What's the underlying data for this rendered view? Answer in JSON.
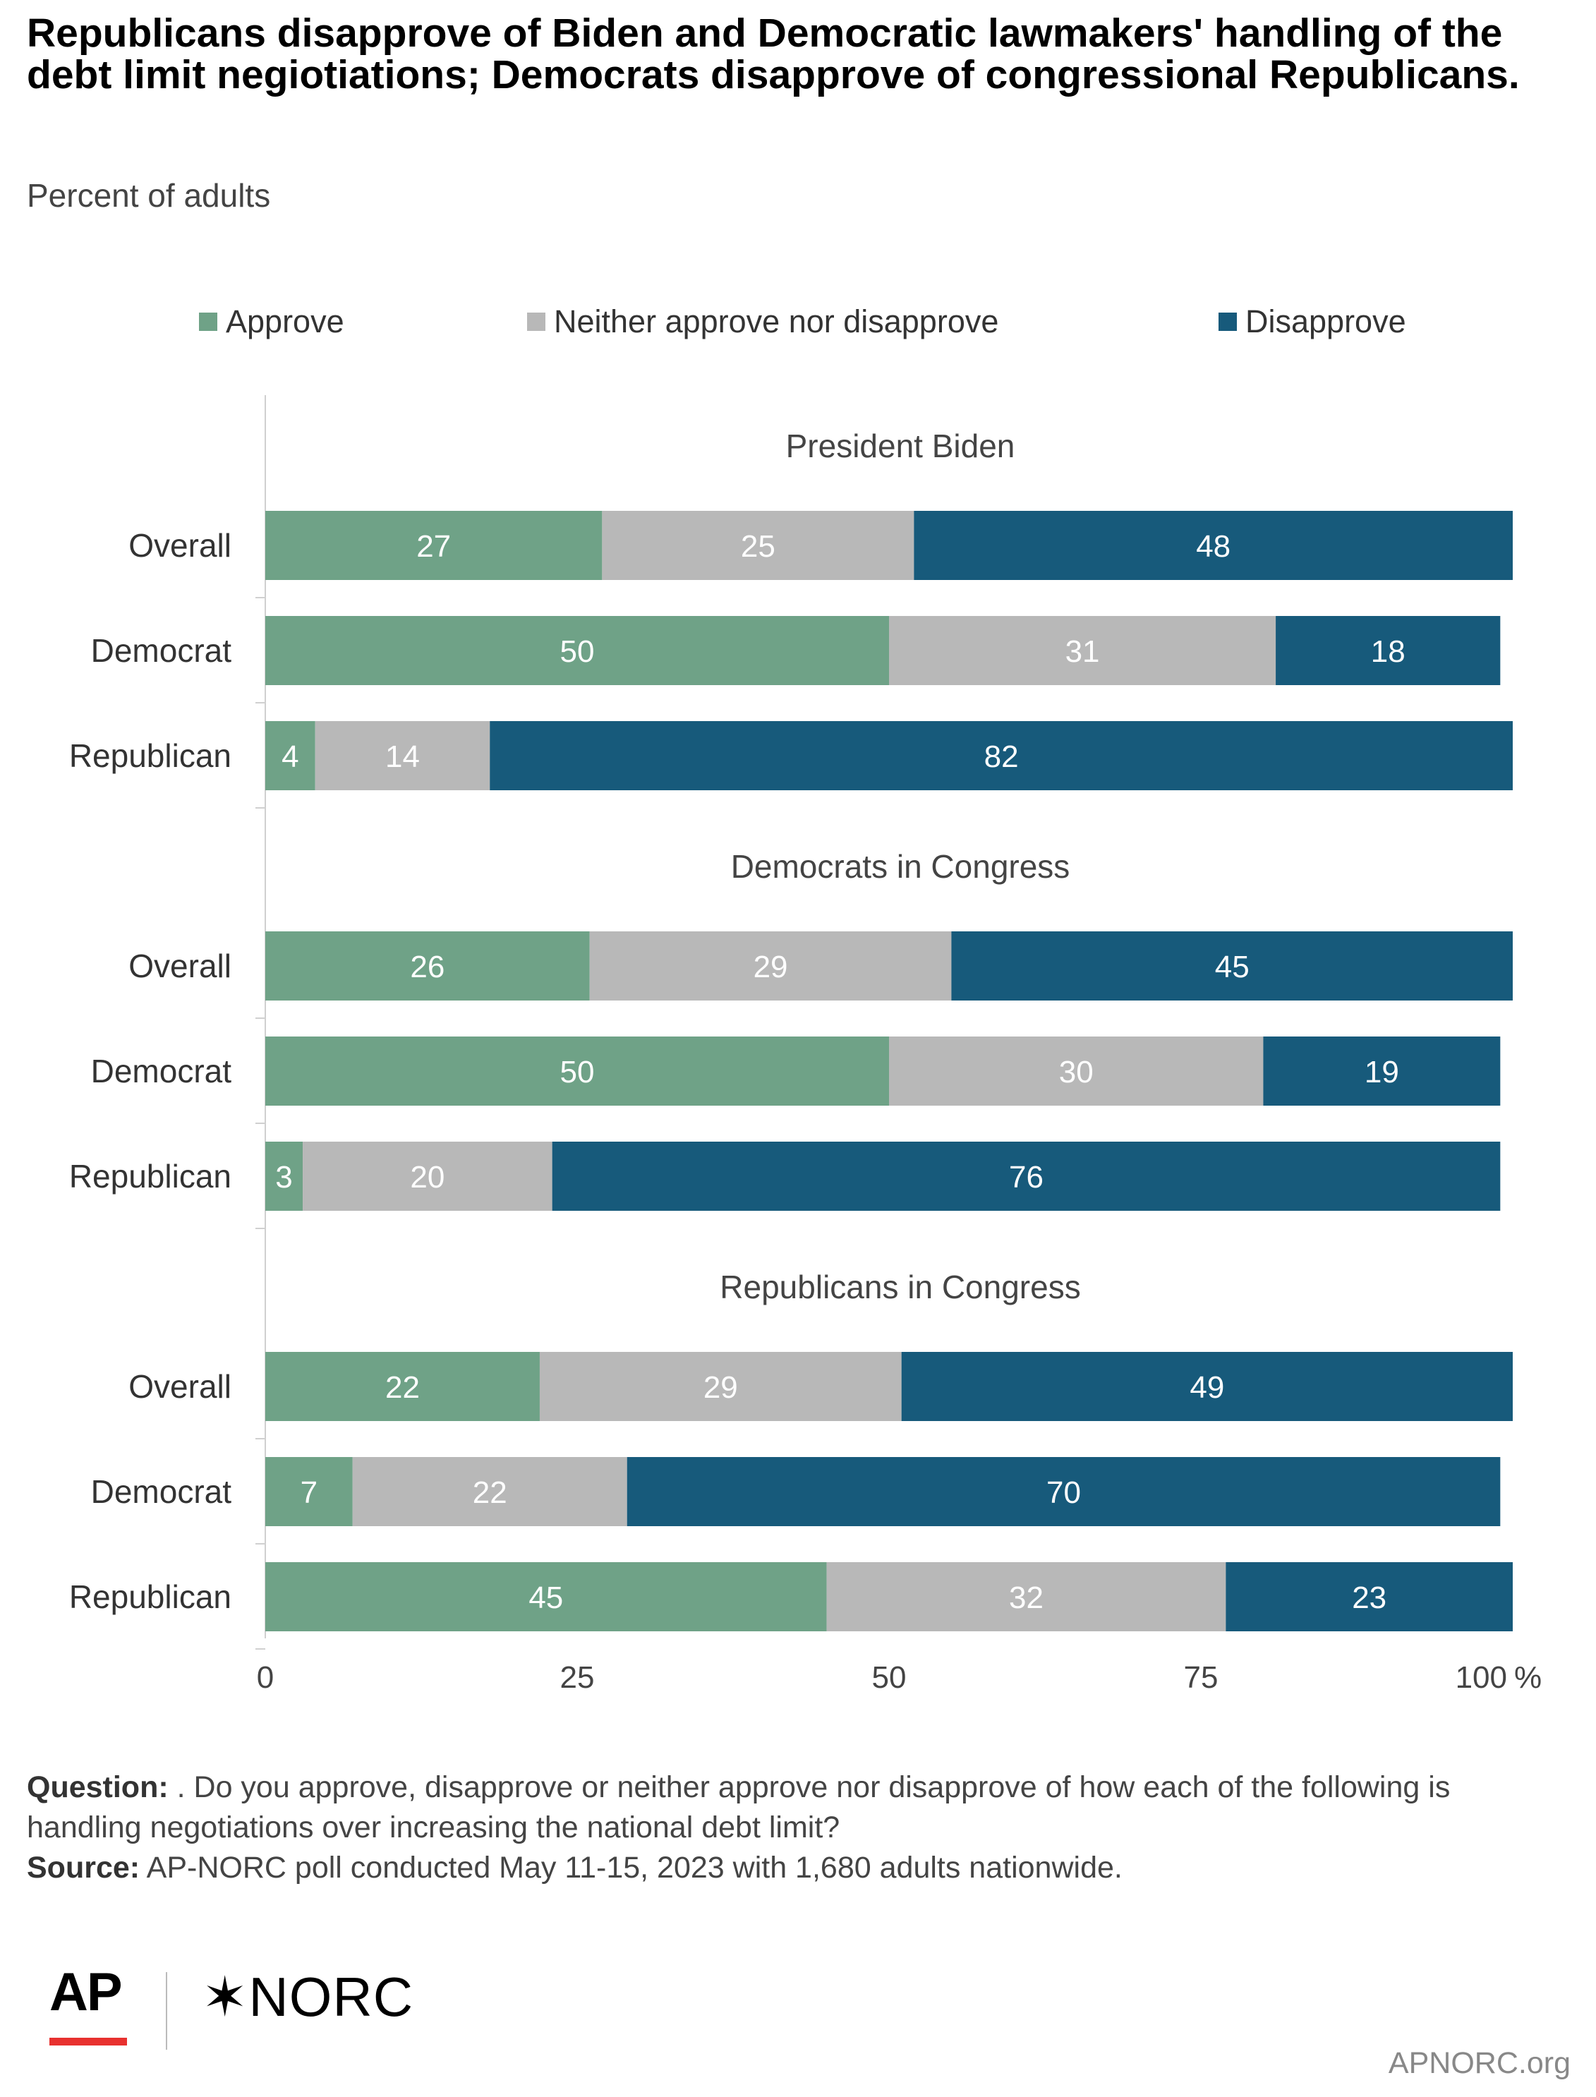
{
  "title": "Republicans disapprove of Biden and Democratic lawmakers' handling of the debt limit negiotiations; Democrats disapprove of congressional Republicans.",
  "subtitle": "Percent of adults",
  "legend": [
    {
      "label": "Approve",
      "color": "#6fa287"
    },
    {
      "label": "Neither approve nor disapprove",
      "color": "#b8b8b8"
    },
    {
      "label": "Disapprove",
      "color": "#175a7b"
    }
  ],
  "chart_data": {
    "type": "bar",
    "orientation": "horizontal",
    "stacked": true,
    "xlim": [
      0,
      100
    ],
    "x_ticks": [
      "0",
      "25",
      "50",
      "75",
      "100"
    ],
    "x_unit": "%",
    "series_names": [
      "Approve",
      "Neither approve nor disapprove",
      "Disapprove"
    ],
    "series_colors": [
      "#6fa287",
      "#b8b8b8",
      "#175a7b"
    ],
    "groups": [
      {
        "title": "President Biden",
        "rows": [
          {
            "label": "Overall",
            "values": [
              27,
              25,
              48
            ]
          },
          {
            "label": "Democrat",
            "values": [
              50,
              31,
              18
            ]
          },
          {
            "label": "Republican",
            "values": [
              4,
              14,
              82
            ]
          }
        ]
      },
      {
        "title": "Democrats in Congress",
        "rows": [
          {
            "label": "Overall",
            "values": [
              26,
              29,
              45
            ]
          },
          {
            "label": "Democrat",
            "values": [
              50,
              30,
              19
            ]
          },
          {
            "label": "Republican",
            "values": [
              3,
              20,
              76
            ]
          }
        ]
      },
      {
        "title": "Republicans in Congress",
        "rows": [
          {
            "label": "Overall",
            "values": [
              22,
              29,
              49
            ]
          },
          {
            "label": "Democrat",
            "values": [
              7,
              22,
              70
            ]
          },
          {
            "label": "Republican",
            "values": [
              45,
              32,
              23
            ]
          }
        ]
      }
    ]
  },
  "notes": {
    "question_label": "Question:",
    "question_text": " . Do you approve, disapprove or neither approve nor disapprove of how each of the following is handling negotiations over increasing the national debt limit?",
    "source_label": "Source:",
    "source_text": " AP-NORC poll conducted May 11-15, 2023 with 1,680 adults nationwide."
  },
  "branding": {
    "ap": "AP",
    "norc": "NORC",
    "norc_mark": "✶",
    "site": "APNORC.org"
  }
}
